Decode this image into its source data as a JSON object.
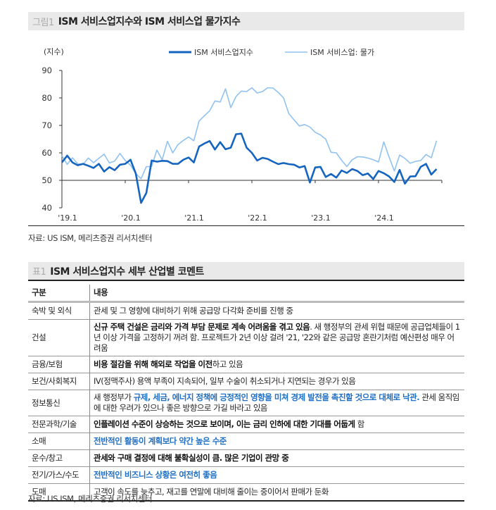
{
  "figure": {
    "tag": "그림1",
    "title": "ISM 서비스업지수와 ISM 서비스업 물가지수",
    "source": "자료: US ISM, 메리츠증권 리서치센터"
  },
  "chart_data": {
    "type": "line",
    "ylabel": "(지수)",
    "ylim": [
      40,
      90
    ],
    "yticks": [
      "90",
      "80",
      "70",
      "60",
      "50",
      "40"
    ],
    "xticks": [
      "'19.1",
      "'20.1",
      "'21.1",
      "'22.1",
      "'23.1",
      "'24.1"
    ],
    "x_start": "2019-01",
    "x_end": "2024-12",
    "frequency": "monthly",
    "legend_position": "top",
    "series": [
      {
        "name": "ISM 서비스업지수",
        "color": "#1565c0",
        "values": [
          56.5,
          59,
          56.5,
          55.5,
          56,
          55.3,
          54.5,
          56,
          53.2,
          54.8,
          53.7,
          55.7,
          56,
          57.5,
          52.5,
          41.8,
          45.4,
          57.2,
          56.8,
          57.1,
          57,
          56,
          56,
          57.5,
          58.3,
          56.5,
          62.3,
          63.4,
          64.3,
          61.2,
          63.9,
          61.3,
          61.9,
          66.8,
          67,
          61.9,
          60,
          57.2,
          58.2,
          57.8,
          56.8,
          55.9,
          56.3,
          55.9,
          55.7,
          54.7,
          55.2,
          49.2,
          54.7,
          54.9,
          51.2,
          52.3,
          51,
          53.6,
          52.7,
          54.1,
          53.4,
          51.9,
          52.5,
          50.5,
          53.4,
          52.6,
          51.4,
          49.4,
          53.8,
          48.8,
          51.4,
          51.5,
          54.9,
          56,
          52.1,
          54.1
        ]
      },
      {
        "name": "ISM 서비스업: 물가",
        "color": "#90c2f0",
        "values": [
          59,
          55.8,
          58.2,
          56,
          55.8,
          58.1,
          56.4,
          58,
          59.5,
          56.3,
          57,
          59.8,
          57.2,
          55.5,
          52.5,
          50.6,
          55,
          55,
          61,
          57.5,
          64.2,
          60,
          63,
          64.5,
          65.8,
          64.4,
          71.6,
          73.5,
          75.3,
          78.9,
          78.5,
          83.3,
          76.5,
          80.5,
          82.5,
          82.3,
          83.7,
          81.8,
          82.3,
          83.7,
          83.6,
          82,
          80,
          74.3,
          72,
          69.8,
          70.3,
          69.4,
          67.5,
          66.5,
          65,
          60.2,
          60,
          57.3,
          55,
          57.5,
          58.6,
          58.5,
          58.1,
          57.5,
          56.7,
          64,
          58.5,
          53.4,
          59.2,
          58,
          56.2,
          56.9,
          57.2,
          59.4,
          58.2,
          64.4
        ]
      }
    ],
    "reference_line": 50
  },
  "table": {
    "tag": "표1",
    "title": "ISM 서비스업지수 세부 산업별 코멘트",
    "headers": [
      "구분",
      "내용"
    ],
    "rows": [
      {
        "sector": "숙박 및 외식",
        "segments": [
          {
            "t": "관세 및 그 영향에 대비하기 위해 공급망 다각화 준비를 진행 중",
            "s": ""
          }
        ]
      },
      {
        "sector": "건설",
        "segments": [
          {
            "t": "신규 주택 건설은 금리와 가격 부담 문제로 계속 어려움을 겪고 있음",
            "s": "b"
          },
          {
            "t": ". 새 행정부의 관세 위협 때문에 공급업체들이 1년 이상 가격을 고정하기 꺼려 함. 프로젝트가 2년 이상 걸려 '21, '22와 같은 공급망 혼란기처럼 예산편성 매우 어려움",
            "s": ""
          }
        ]
      },
      {
        "sector": "금융/보험",
        "segments": [
          {
            "t": "비용 절감을 위해 해외로 작업을 이전",
            "s": "b"
          },
          {
            "t": "하고 있음",
            "s": ""
          }
        ]
      },
      {
        "sector": "보건/사회복지",
        "segments": [
          {
            "t": "IV(정맥주사) 용액 부족이 지속되어, 일부 수술이 취소되거나 지연되는 경우가 있음",
            "s": ""
          }
        ]
      },
      {
        "sector": "정보통신",
        "segments": [
          {
            "t": "새 행정부가 ",
            "s": ""
          },
          {
            "t": "규제, 세금, 에너지 정책에 긍정적인 영향을 미쳐 경제 발전을 촉진할 것으로 대체로 낙관.",
            "s": "u"
          },
          {
            "t": " 관세 움직임에 대한 우려가 있으나 좋은 방향으로 가길 바라고 있음",
            "s": ""
          }
        ]
      },
      {
        "sector": "전문과학/기술",
        "segments": [
          {
            "t": "인플레이션 수준이 상승하는 것으로 보이며, 이는 금리 인하에 대한 기대를 어둡게",
            "s": "b"
          },
          {
            "t": " 함",
            "s": ""
          }
        ]
      },
      {
        "sector": "소매",
        "segments": [
          {
            "t": "전반적인 활동이 계획보다 약간 높은 수준",
            "s": "u"
          }
        ]
      },
      {
        "sector": "운수/창고",
        "segments": [
          {
            "t": "관세와 구매 결정에 대해 불확실성이 큼. 많은 기업이 관망 중",
            "s": "b"
          }
        ]
      },
      {
        "sector": "전기/가스/수도",
        "segments": [
          {
            "t": "전반적인 비즈니스 상황은 여전히 좋음",
            "s": "u"
          }
        ]
      },
      {
        "sector": "도매",
        "segments": [
          {
            "t": "고객이 속도를 늦추고, 재고를 연말에 대비해 줄이는 중이어서 판매가 둔화",
            "s": ""
          }
        ]
      }
    ],
    "source": "자료: US ISM, 메리츠증권 리서치센터"
  }
}
